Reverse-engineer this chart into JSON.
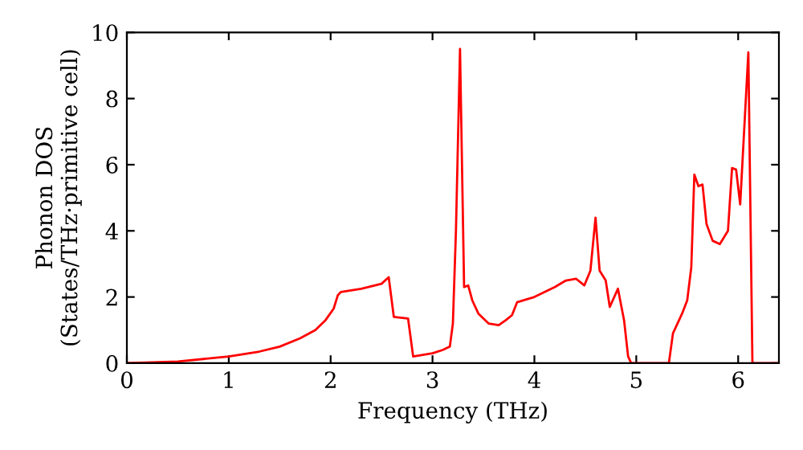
{
  "chart_data": {
    "type": "line",
    "xlabel": "Frequency (THz)",
    "ylabel": "Phonon DOS\n(States/THz·primitive cell)",
    "x": [
      0,
      0.5,
      1.0,
      1.3,
      1.5,
      1.7,
      1.85,
      1.95,
      2.03,
      2.07,
      2.1,
      2.3,
      2.5,
      2.57,
      2.62,
      2.76,
      2.81,
      3.0,
      3.1,
      3.17,
      3.2,
      3.23,
      3.27,
      3.31,
      3.35,
      3.39,
      3.45,
      3.55,
      3.65,
      3.72,
      3.78,
      3.83,
      4.0,
      4.2,
      4.31,
      4.41,
      4.49,
      4.55,
      4.6,
      4.64,
      4.7,
      4.74,
      4.82,
      4.88,
      4.92,
      4.95,
      5.32,
      5.36,
      5.45,
      5.5,
      5.54,
      5.57,
      5.61,
      5.65,
      5.69,
      5.75,
      5.82,
      5.9,
      5.94,
      5.98,
      6.02,
      6.1,
      6.14,
      6.4
    ],
    "series": [
      {
        "color": "#ff0000",
        "values": [
          0,
          0.05,
          0.2,
          0.35,
          0.5,
          0.75,
          1.0,
          1.3,
          1.65,
          2.05,
          2.15,
          2.25,
          2.4,
          2.6,
          1.4,
          1.35,
          0.2,
          0.3,
          0.4,
          0.5,
          1.2,
          4.0,
          9.5,
          2.3,
          2.35,
          1.9,
          1.5,
          1.2,
          1.15,
          1.3,
          1.45,
          1.84,
          2.0,
          2.3,
          2.5,
          2.55,
          2.35,
          2.8,
          4.4,
          2.8,
          2.5,
          1.7,
          2.25,
          1.3,
          0.2,
          0,
          0,
          0.9,
          1.5,
          1.9,
          2.9,
          5.7,
          5.35,
          5.4,
          4.2,
          3.7,
          3.6,
          4.0,
          5.9,
          5.85,
          4.8,
          9.4,
          0,
          0
        ]
      }
    ],
    "xlim": [
      0,
      6.4
    ],
    "xticks": [
      0,
      1,
      2,
      3,
      4,
      5,
      6
    ],
    "ylim": [
      0,
      10
    ],
    "yticks": [
      0,
      2,
      4,
      6,
      8,
      10
    ],
    "grid": false,
    "legend": false,
    "marker": "none",
    "line_style": "solid"
  }
}
